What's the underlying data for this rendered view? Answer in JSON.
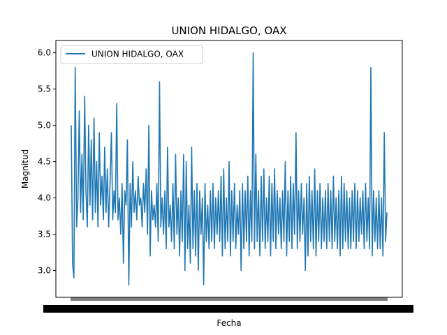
{
  "chart_data": {
    "type": "line",
    "title": "UNION HIDALGO, OAX",
    "xlabel": "Fecha",
    "ylabel": "Magnitud",
    "ylim": [
      2.63,
      6.17
    ],
    "yticks": [
      "3.0",
      "3.5",
      "4.0",
      "4.5",
      "5.0",
      "5.5",
      "6.0"
    ],
    "legend": {
      "placement": "top-left",
      "entries": [
        "UNION HIDALGO, OAX"
      ]
    },
    "grid": false,
    "x_tick_labels_overlapping": true,
    "series": [
      {
        "name": "UNION HIDALGO, OAX",
        "color": "#1f77b4",
        "y": [
          5.0,
          3.1,
          2.9,
          5.8,
          3.6,
          4.0,
          5.2,
          3.8,
          4.6,
          3.7,
          5.4,
          4.1,
          3.6,
          5.0,
          3.9,
          4.8,
          3.7,
          5.1,
          3.8,
          4.5,
          3.6,
          4.9,
          3.9,
          4.3,
          3.7,
          4.7,
          3.8,
          4.4,
          3.6,
          4.2,
          4.9,
          3.7,
          4.1,
          3.8,
          5.3,
          3.7,
          4.0,
          3.5,
          4.2,
          3.1,
          4.1,
          3.9,
          4.8,
          2.8,
          4.2,
          3.6,
          4.5,
          3.8,
          4.1,
          3.7,
          4.3,
          3.9,
          4.0,
          3.6,
          4.2,
          3.8,
          4.4,
          3.5,
          5.0,
          3.2,
          4.1,
          3.7,
          3.9,
          3.6,
          4.2,
          3.4,
          5.6,
          3.6,
          4.0,
          3.5,
          4.1,
          3.3,
          4.7,
          3.6,
          3.9,
          3.4,
          4.2,
          3.3,
          4.6,
          3.5,
          4.0,
          3.2,
          4.1,
          3.4,
          4.6,
          3.0,
          4.5,
          3.3,
          3.9,
          3.1,
          4.7,
          3.3,
          4.1,
          3.2,
          4.2,
          3.0,
          4.1,
          3.5,
          4.0,
          2.8,
          4.2,
          3.4,
          3.9,
          3.3,
          4.1,
          3.4,
          4.2,
          3.3,
          4.0,
          3.5,
          4.1,
          3.4,
          4.3,
          3.2,
          4.4,
          3.3,
          4.0,
          3.4,
          4.5,
          3.2,
          4.1,
          3.4,
          4.2,
          3.3,
          3.9,
          3.5,
          4.1,
          3.0,
          4.2,
          3.3,
          4.1,
          3.4,
          4.3,
          3.2,
          4.1,
          3.4,
          6.0,
          3.3,
          4.6,
          3.4,
          4.1,
          3.2,
          4.3,
          3.4,
          4.4,
          3.3,
          4.0,
          3.4,
          4.3,
          3.2,
          4.2,
          3.4,
          4.4,
          3.3,
          4.1,
          3.5,
          4.0,
          3.3,
          4.1,
          3.4,
          4.5,
          3.2,
          4.1,
          3.4,
          4.3,
          3.3,
          4.2,
          3.5,
          4.9,
          3.3,
          4.1,
          3.4,
          4.2,
          3.5,
          4.0,
          3.0,
          4.2,
          3.2,
          4.3,
          3.4,
          4.1,
          3.3,
          4.4,
          3.2,
          4.1,
          3.4,
          4.2,
          3.3,
          4.0,
          3.4,
          4.1,
          3.3,
          4.2,
          3.4,
          4.1,
          3.3,
          4.3,
          3.4,
          4.0,
          3.3,
          4.1,
          3.2,
          4.3,
          3.3,
          4.2,
          3.4,
          4.1,
          3.3,
          4.0,
          3.3,
          4.1,
          3.4,
          4.2,
          3.3,
          4.1,
          3.4,
          4.0,
          3.5,
          4.1,
          3.3,
          4.2,
          3.4,
          4.0,
          3.3,
          5.8,
          3.2,
          4.1,
          3.4,
          4.0,
          3.3,
          4.1,
          3.3,
          4.0,
          3.2,
          4.9,
          3.4,
          3.8
        ]
      }
    ]
  }
}
